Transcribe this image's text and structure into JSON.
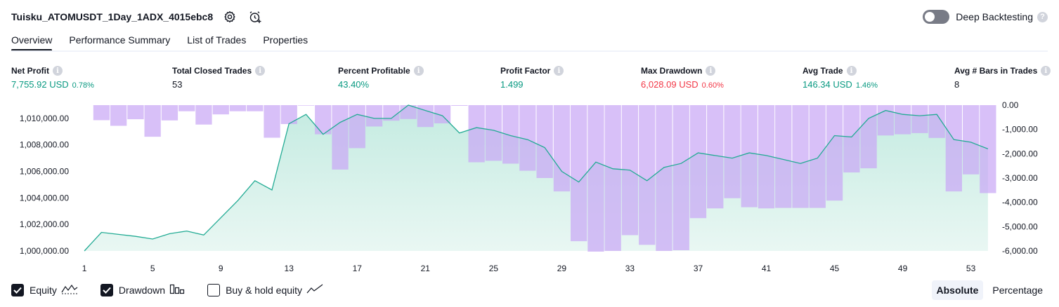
{
  "header": {
    "strategy_name": "Tuisku_ATOMUSDT_1Day_1ADX_4015ebc8"
  },
  "deep_backtesting": {
    "label": "Deep Backtesting",
    "enabled": false
  },
  "tabs": [
    {
      "label": "Overview",
      "active": true
    },
    {
      "label": "Performance Summary",
      "active": false
    },
    {
      "label": "List of Trades",
      "active": false
    },
    {
      "label": "Properties",
      "active": false
    }
  ],
  "metrics": {
    "net_profit": {
      "label": "Net Profit",
      "value": "7,755.92 USD",
      "pct": "0.78%"
    },
    "total_closed_trades": {
      "label": "Total Closed Trades",
      "value": "53"
    },
    "percent_profitable": {
      "label": "Percent Profitable",
      "value": "43.40%"
    },
    "profit_factor": {
      "label": "Profit Factor",
      "value": "1.499"
    },
    "max_drawdown": {
      "label": "Max Drawdown",
      "value": "6,028.09 USD",
      "pct": "0.60%"
    },
    "avg_trade": {
      "label": "Avg Trade",
      "value": "146.34 USD",
      "pct": "1.46%"
    },
    "avg_bars": {
      "label": "Avg # Bars in Trades",
      "value": "8"
    }
  },
  "legend": {
    "equity": {
      "label": "Equity",
      "checked": true
    },
    "drawdown": {
      "label": "Drawdown",
      "checked": true
    },
    "buy_hold": {
      "label": "Buy & hold equity",
      "checked": false
    }
  },
  "mode": {
    "absolute": "Absolute",
    "percentage": "Percentage",
    "selected": "Absolute"
  },
  "colors": {
    "equity_line": "#22ab94",
    "equity_fill_top": "#c4ebe1",
    "equity_fill_bottom": "#e9f7f3",
    "drawdown_bar": "#c9a8f5",
    "profit": "#089981",
    "loss": "#f23645"
  },
  "chart_data": {
    "type": "area",
    "x_ticks": [
      "1",
      "5",
      "9",
      "13",
      "17",
      "21",
      "25",
      "29",
      "33",
      "37",
      "41",
      "45",
      "49",
      "53"
    ],
    "left_axis": {
      "ticks": [
        "1,010,000.00",
        "1,008,000.00",
        "1,006,000.00",
        "1,004,000.00",
        "1,002,000.00",
        "1,000,000.00"
      ],
      "ylim": [
        1000000,
        1011000
      ]
    },
    "right_axis": {
      "ticks": [
        "0.00",
        "-1,000.00",
        "-2,000.00",
        "-3,000.00",
        "-4,000.00",
        "-5,000.00",
        "-6,000.00"
      ],
      "ylim": [
        -6000,
        0
      ]
    },
    "series": [
      {
        "name": "Equity",
        "type": "line",
        "x": [
          1,
          2,
          3,
          4,
          5,
          6,
          7,
          8,
          9,
          10,
          11,
          12,
          13,
          14,
          15,
          16,
          17,
          18,
          19,
          20,
          21,
          22,
          23,
          24,
          25,
          26,
          27,
          28,
          29,
          30,
          31,
          32,
          33,
          34,
          35,
          36,
          37,
          38,
          39,
          40,
          41,
          42,
          43,
          44,
          45,
          46,
          47,
          48,
          49,
          50,
          51,
          52,
          53,
          54
        ],
        "values": [
          1000000,
          1001400,
          1001250,
          1001100,
          1000900,
          1001300,
          1001500,
          1001200,
          1002500,
          1003800,
          1005300,
          1004600,
          1009600,
          1010300,
          1008800,
          1009700,
          1010300,
          1010000,
          1010000,
          1011000,
          1010600,
          1010200,
          1008900,
          1009300,
          1009100,
          1008700,
          1008400,
          1007800,
          1006000,
          1005200,
          1006700,
          1006200,
          1006100,
          1005300,
          1006300,
          1006600,
          1007400,
          1007200,
          1007000,
          1007400,
          1007200,
          1006900,
          1006600,
          1007000,
          1008700,
          1008600,
          1010000,
          1010600,
          1010300,
          1010200,
          1010300,
          1008400,
          1008200,
          1007700
        ]
      },
      {
        "name": "Drawdown",
        "type": "bar",
        "x": [
          1,
          2,
          3,
          4,
          5,
          6,
          7,
          8,
          9,
          10,
          11,
          12,
          13,
          14,
          15,
          16,
          17,
          18,
          19,
          20,
          21,
          22,
          23,
          24,
          25,
          26,
          27,
          28,
          29,
          30,
          31,
          32,
          33,
          34,
          35,
          36,
          37,
          38,
          39,
          40,
          41,
          42,
          43,
          44,
          45,
          46,
          47,
          48,
          49,
          50,
          51,
          52,
          53,
          54
        ],
        "values": [
          0,
          -620,
          -850,
          -580,
          -1300,
          -630,
          -250,
          -800,
          -380,
          -250,
          -250,
          -1340,
          -780,
          -20,
          -1200,
          -2650,
          -1770,
          -880,
          -640,
          -570,
          -900,
          -750,
          -30,
          -2350,
          -2290,
          -2410,
          -2700,
          -3000,
          -3550,
          -5600,
          -6030,
          -6000,
          -5350,
          -5750,
          -6000,
          -5970,
          -4650,
          -4250,
          -3830,
          -4200,
          -4250,
          -4230,
          -4230,
          -4230,
          -3930,
          -2770,
          -2600,
          -1250,
          -1200,
          -1150,
          -1350,
          -3550,
          -2850,
          -3620
        ]
      }
    ]
  }
}
